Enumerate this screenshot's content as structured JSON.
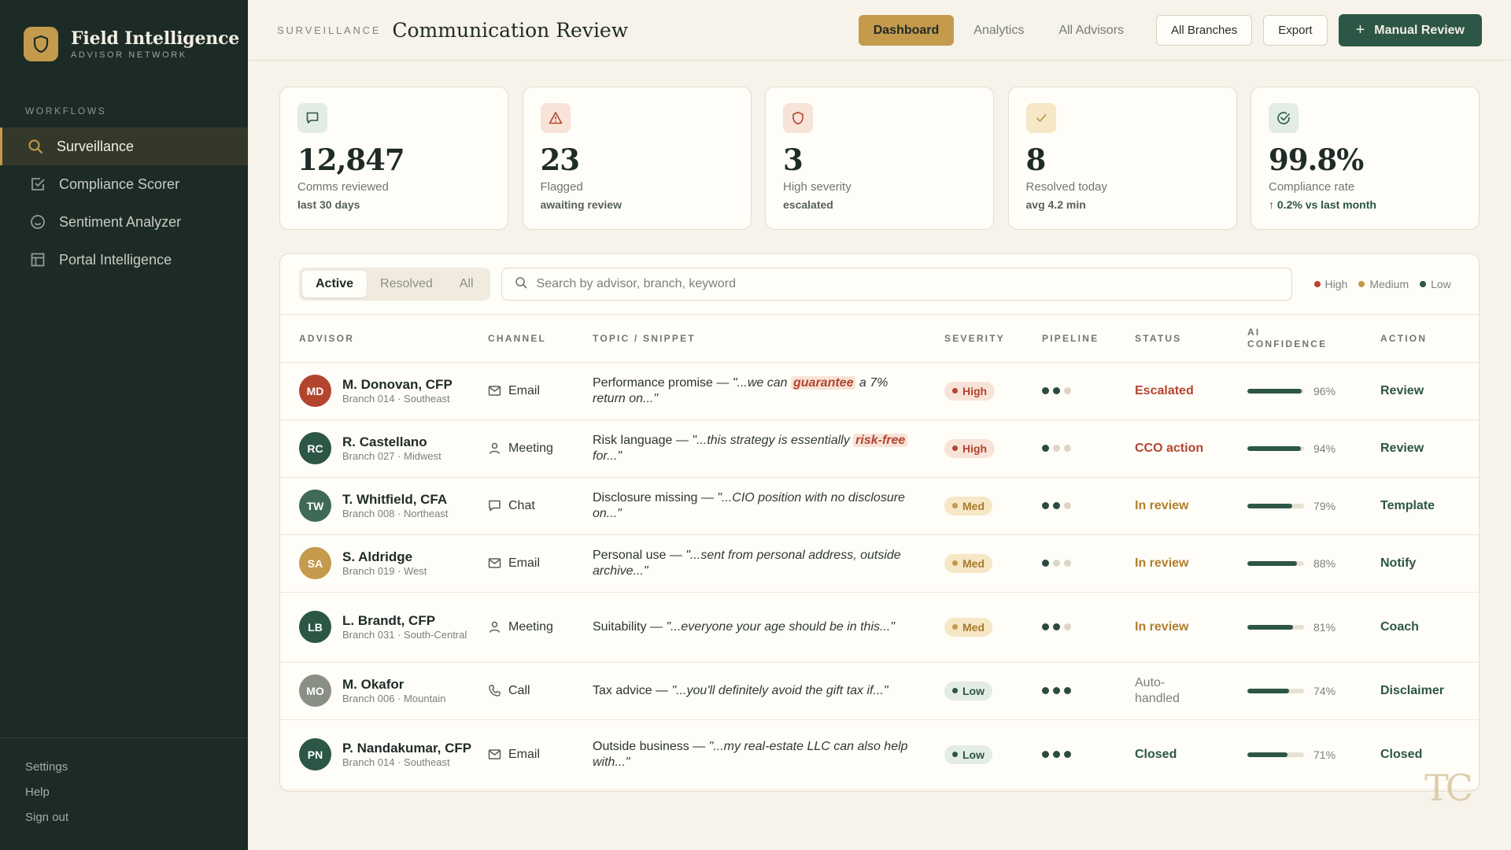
{
  "brand": {
    "name": "Field Intelligence",
    "subtitle": "ADVISOR NETWORK",
    "logo_icon": "shield-icon",
    "accent": "#c49a4d"
  },
  "sidebar": {
    "heading": "WORKFLOWS",
    "items": [
      {
        "label": "Surveillance",
        "icon": "search-icon",
        "active": true
      },
      {
        "label": "Compliance Scorer",
        "icon": "checkbox-icon",
        "active": false
      },
      {
        "label": "Sentiment Analyzer",
        "icon": "smiley-icon",
        "active": false
      },
      {
        "label": "Portal Intelligence",
        "icon": "layout-icon",
        "active": false
      }
    ],
    "footer": [
      "Settings",
      "Help",
      "Sign out"
    ]
  },
  "header": {
    "breadcrumb": "SURVEILLANCE",
    "title": "Communication Review",
    "tabs": [
      "Dashboard",
      "Analytics",
      "All Advisors"
    ],
    "branch_filter": "All Branches",
    "export": "Export",
    "primary": "Manual Review",
    "primary_icon": "+"
  },
  "stats": [
    {
      "icon": "chat-icon",
      "value": "12,847",
      "label": "Comms reviewed",
      "sub": "last 30 days"
    },
    {
      "icon": "warning-icon",
      "value": "23",
      "label": "Flagged",
      "sub": "awaiting review"
    },
    {
      "icon": "shield-icon",
      "value": "3",
      "label": "High severity",
      "sub": "escalated"
    },
    {
      "icon": "check-icon",
      "value": "8",
      "label": "Resolved today",
      "sub": "avg 4.2 min"
    },
    {
      "icon": "check-circle-icon",
      "value": "99.8%",
      "label": "Compliance rate",
      "sub": "0.2% vs last month",
      "sub_icon": "arrow-up-icon"
    }
  ],
  "filters": {
    "segments": [
      "Active",
      "Resolved",
      "All"
    ],
    "search_placeholder": "Search by advisor, branch, keyword",
    "legend": [
      {
        "label": "High",
        "color": "#b3452f"
      },
      {
        "label": "Medium",
        "color": "#c49a4d"
      },
      {
        "label": "Low",
        "color": "#2c5645"
      }
    ]
  },
  "table": {
    "columns": [
      "ADVISOR",
      "CHANNEL",
      "TOPIC / SNIPPET",
      "SEVERITY",
      "PIPELINE",
      "STATUS",
      "AI CONFIDENCE",
      "ACTION"
    ],
    "rows": [
      {
        "initials": "MD",
        "avatar_color": "#b3452f",
        "name": "M. Donovan, CFP",
        "branch": "Branch 014 · Southeast",
        "channel": "Email",
        "channel_icon": "mail-icon",
        "topic": "Performance promise —",
        "snippet_pre": "\"...we can ",
        "keyword": "guarantee",
        "snippet_post": " a 7% return on...\"",
        "severity": "High",
        "pipeline_done": 2,
        "status": "Escalated",
        "confidence": 96,
        "confidence_label": "96%",
        "action": "Review"
      },
      {
        "initials": "RC",
        "avatar_color": "#2c5645",
        "name": "R. Castellano",
        "branch": "Branch 027 · Midwest",
        "channel": "Meeting",
        "channel_icon": "person-icon",
        "topic": "Risk language —",
        "snippet_pre": "\"...this strategy is essentially ",
        "keyword": "risk-free",
        "snippet_post": " for...\"",
        "severity": "High",
        "pipeline_done": 1,
        "status": "CCO action",
        "confidence": 94,
        "confidence_label": "94%",
        "action": "Review"
      },
      {
        "initials": "TW",
        "avatar_color": "#3f6a57",
        "name": "T. Whitfield, CFA",
        "branch": "Branch 008 · Northeast",
        "channel": "Chat",
        "channel_icon": "chat-icon",
        "topic": "Disclosure missing —",
        "snippet_pre": "\"...CIO position with no disclosure on...\"",
        "keyword": "",
        "snippet_post": "",
        "severity": "Med",
        "pipeline_done": 2,
        "status": "In review",
        "confidence": 79,
        "confidence_label": "79%",
        "action": "Template"
      },
      {
        "initials": "SA",
        "avatar_color": "#c49a4d",
        "name": "S. Aldridge",
        "branch": "Branch 019 · West",
        "channel": "Email",
        "channel_icon": "mail-icon",
        "topic": "Personal use —",
        "snippet_pre": "\"...sent from personal address, outside archive...\"",
        "keyword": "",
        "snippet_post": "",
        "severity": "Med",
        "pipeline_done": 1,
        "status": "In review",
        "confidence": 88,
        "confidence_label": "88%",
        "action": "Notify"
      },
      {
        "initials": "LB",
        "avatar_color": "#2c5645",
        "name": "L. Brandt, CFP",
        "branch": "Branch 031 · South-Central",
        "channel": "Meeting",
        "channel_icon": "person-icon",
        "topic": "Suitability —",
        "snippet_pre": "\"...everyone your age should be in this...\"",
        "keyword": "",
        "snippet_post": "",
        "severity": "Med",
        "pipeline_done": 2,
        "status": "In review",
        "confidence": 81,
        "confidence_label": "81%",
        "action": "Coach"
      },
      {
        "initials": "MO",
        "avatar_color": "#8a8f86",
        "name": "M. Okafor",
        "branch": "Branch 006 · Mountain",
        "channel": "Call",
        "channel_icon": "phone-icon",
        "topic": "Tax advice —",
        "snippet_pre": "\"...you'll definitely avoid the gift tax if...\"",
        "keyword": "",
        "snippet_post": "",
        "severity": "Low",
        "pipeline_done": 3,
        "status": "Auto-handled",
        "confidence": 74,
        "confidence_label": "74%",
        "action": "Disclaimer"
      },
      {
        "initials": "PN",
        "avatar_color": "#2c5645",
        "name": "P. Nandakumar, CFP",
        "branch": "Branch 014 · Southeast",
        "channel": "Email",
        "channel_icon": "mail-icon",
        "topic": "Outside business —",
        "snippet_pre": "\"...my real-estate LLC can also help with...\"",
        "keyword": "",
        "snippet_post": "",
        "severity": "Low",
        "pipeline_done": 3,
        "status": "Closed",
        "confidence": 71,
        "confidence_label": "71%",
        "action": "Closed"
      }
    ]
  },
  "watermark": "TC"
}
